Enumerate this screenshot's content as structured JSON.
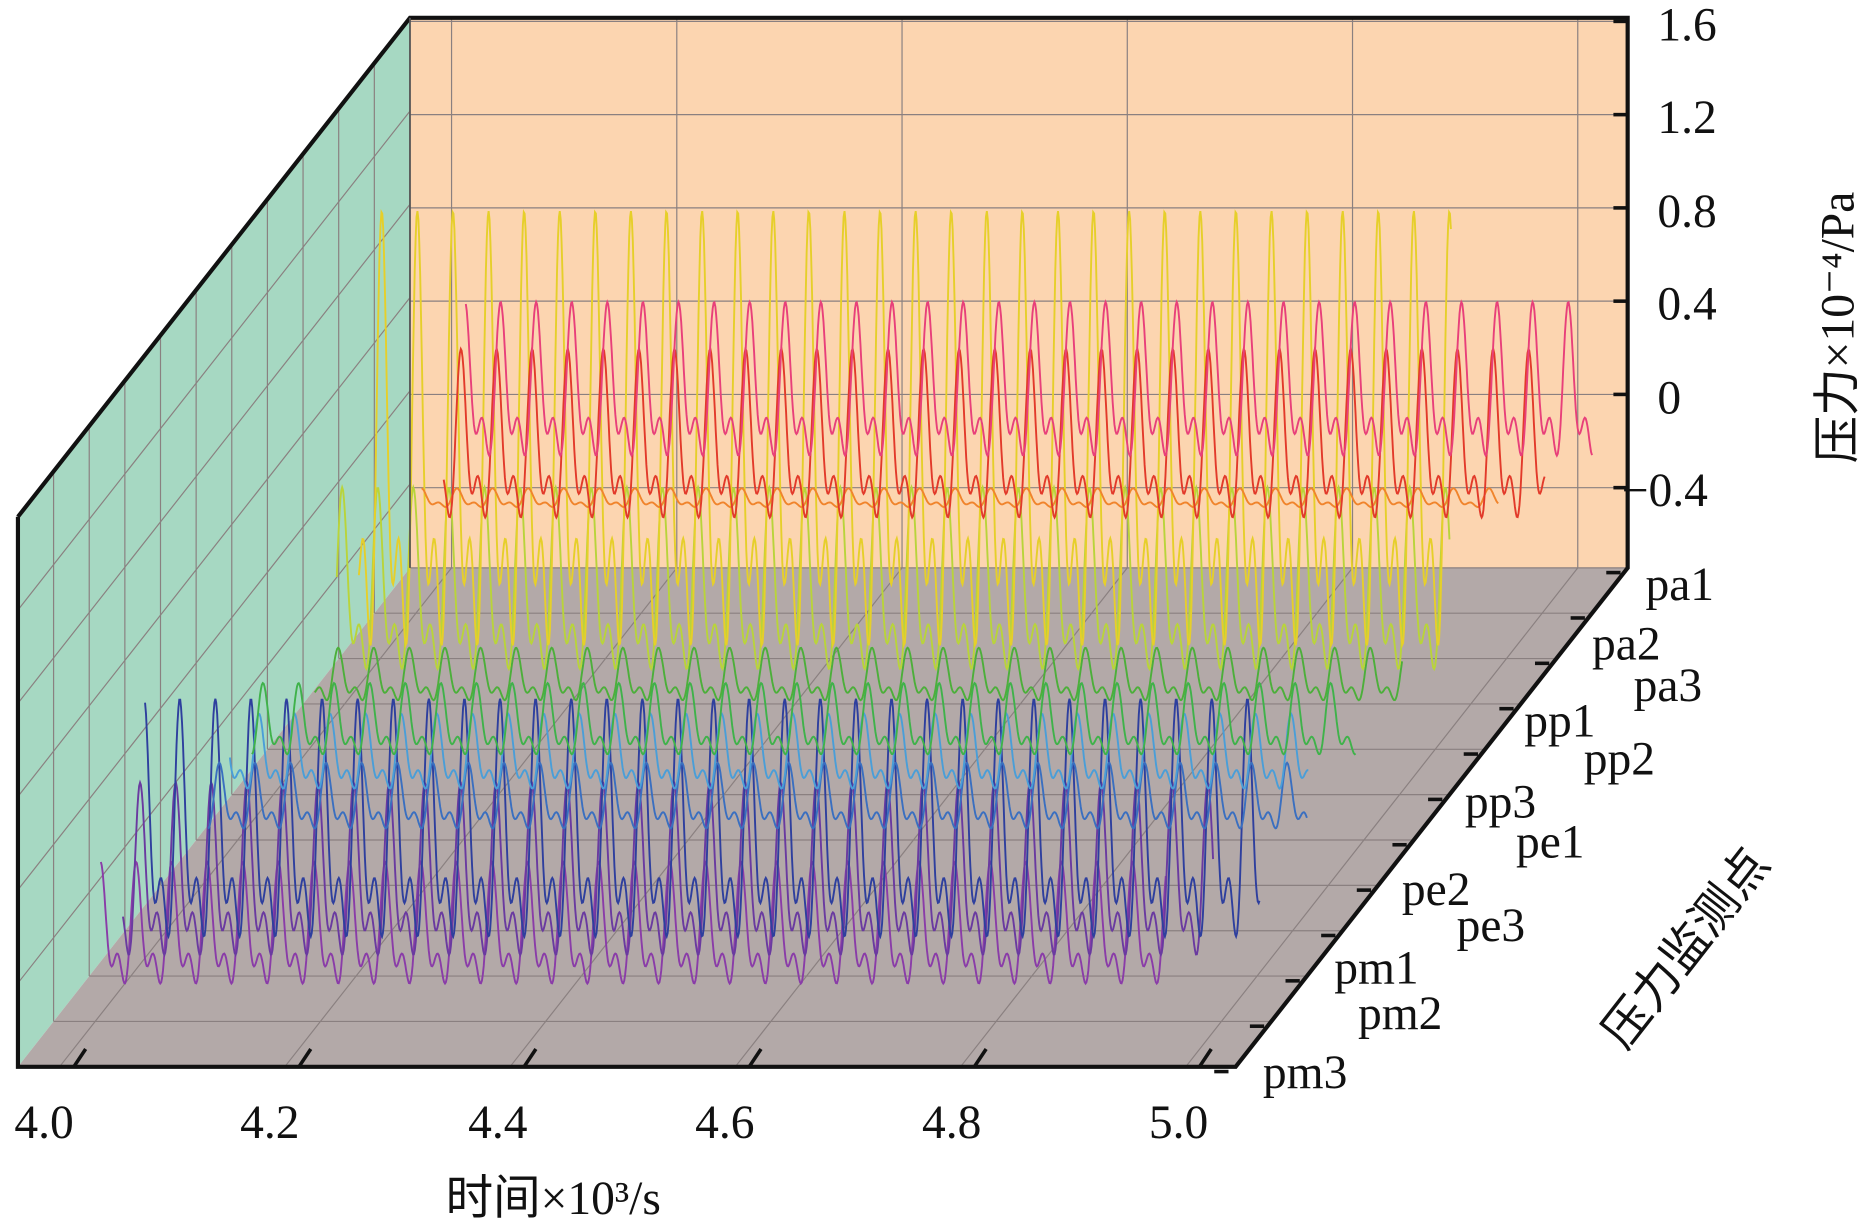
{
  "chart_data": {
    "type": "line",
    "title": "",
    "xlabel": "时间×10³/s",
    "ylabel": "压力×10⁻⁴/Pa",
    "zlabel": "压力监测点",
    "xlim": [
      4.0,
      5.0
    ],
    "ylim": [
      -0.74,
      1.6
    ],
    "x_ticks": [
      "4.0",
      "4.2",
      "4.4",
      "4.6",
      "4.8",
      "5.0"
    ],
    "y_ticks": [
      "1.6",
      "1.2",
      "0.8",
      "0.4",
      "0",
      "−0.4"
    ],
    "grid": true,
    "period": 0.0316,
    "series": [
      {
        "name": "pa1",
        "color": "#e8407a",
        "max": 0.4,
        "min": -0.42
      },
      {
        "name": "pa2",
        "color": "#e23a2a",
        "max": 0.39,
        "min": -0.51
      },
      {
        "name": "pa3",
        "color": "#f0842c",
        "max": -0.02,
        "min": -0.12
      },
      {
        "name": "pp1",
        "color": "#e6cf2a",
        "max": 1.37,
        "min": -0.95
      },
      {
        "name": "pp2",
        "color": "#b9d43a",
        "max": 0.37,
        "min": -0.6
      },
      {
        "name": "pp3",
        "color": "#4caf3a",
        "max": -0.13,
        "min": -0.41
      },
      {
        "name": "pe1",
        "color": "#3fb24a",
        "max": -0.09,
        "min": -0.47
      },
      {
        "name": "pe2",
        "color": "#4a9ed8",
        "max": -0.03,
        "min": -0.43
      },
      {
        "name": "pe3",
        "color": "#3a6fc0",
        "max": -0.05,
        "min": -0.4
      },
      {
        "name": "pm1",
        "color": "#2e3f9e",
        "max": 0.42,
        "min": -0.85
      },
      {
        "name": "pm2",
        "color": "#6a3aa0",
        "max": 0.25,
        "min": -0.67
      },
      {
        "name": "pm3",
        "color": "#8a3ca8",
        "max": 0.1,
        "min": -0.55
      }
    ],
    "colors": {
      "back_wall": "#fcd5b0",
      "side_wall": "#a6d8c2",
      "floor": "#b3a9a8"
    }
  }
}
